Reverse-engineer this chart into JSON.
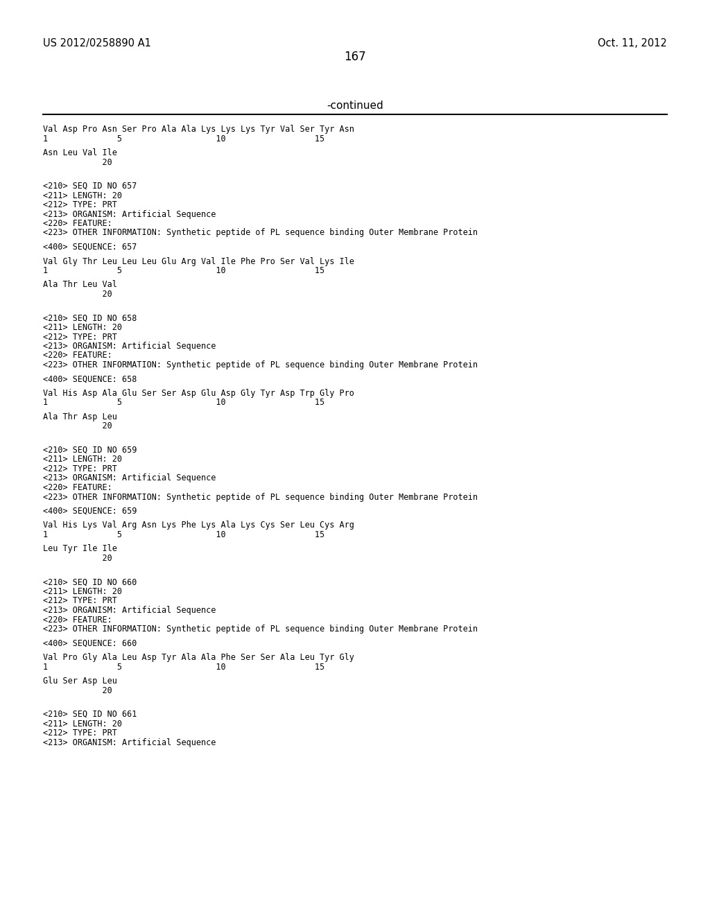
{
  "header_left": "US 2012/0258890 A1",
  "header_right": "Oct. 11, 2012",
  "page_number": "167",
  "continued_label": "-continued",
  "background_color": "#ffffff",
  "text_color": "#000000",
  "line_color": "#000000",
  "header_fontsize": 10.5,
  "page_num_fontsize": 12,
  "continued_fontsize": 11,
  "content_fontsize": 8.5,
  "content_lines": [
    {
      "text": "Val Asp Pro Asn Ser Pro Ala Ala Lys Lys Lys Tyr Val Ser Tyr Asn",
      "style": "seq"
    },
    {
      "text": "1              5                   10                  15",
      "style": "num"
    },
    {
      "text": "",
      "style": "blank"
    },
    {
      "text": "Asn Leu Val Ile",
      "style": "seq"
    },
    {
      "text": "            20",
      "style": "num"
    },
    {
      "text": "",
      "style": "blank"
    },
    {
      "text": "",
      "style": "blank"
    },
    {
      "text": "",
      "style": "blank"
    },
    {
      "text": "<210> SEQ ID NO 657",
      "style": "meta"
    },
    {
      "text": "<211> LENGTH: 20",
      "style": "meta"
    },
    {
      "text": "<212> TYPE: PRT",
      "style": "meta"
    },
    {
      "text": "<213> ORGANISM: Artificial Sequence",
      "style": "meta"
    },
    {
      "text": "<220> FEATURE:",
      "style": "meta"
    },
    {
      "text": "<223> OTHER INFORMATION: Synthetic peptide of PL sequence binding Outer Membrane Protein",
      "style": "meta"
    },
    {
      "text": "",
      "style": "blank"
    },
    {
      "text": "<400> SEQUENCE: 657",
      "style": "meta"
    },
    {
      "text": "",
      "style": "blank"
    },
    {
      "text": "Val Gly Thr Leu Leu Leu Glu Arg Val Ile Phe Pro Ser Val Lys Ile",
      "style": "seq"
    },
    {
      "text": "1              5                   10                  15",
      "style": "num"
    },
    {
      "text": "",
      "style": "blank"
    },
    {
      "text": "Ala Thr Leu Val",
      "style": "seq"
    },
    {
      "text": "            20",
      "style": "num"
    },
    {
      "text": "",
      "style": "blank"
    },
    {
      "text": "",
      "style": "blank"
    },
    {
      "text": "",
      "style": "blank"
    },
    {
      "text": "<210> SEQ ID NO 658",
      "style": "meta"
    },
    {
      "text": "<211> LENGTH: 20",
      "style": "meta"
    },
    {
      "text": "<212> TYPE: PRT",
      "style": "meta"
    },
    {
      "text": "<213> ORGANISM: Artificial Sequence",
      "style": "meta"
    },
    {
      "text": "<220> FEATURE:",
      "style": "meta"
    },
    {
      "text": "<223> OTHER INFORMATION: Synthetic peptide of PL sequence binding Outer Membrane Protein",
      "style": "meta"
    },
    {
      "text": "",
      "style": "blank"
    },
    {
      "text": "<400> SEQUENCE: 658",
      "style": "meta"
    },
    {
      "text": "",
      "style": "blank"
    },
    {
      "text": "Val His Asp Ala Glu Ser Ser Asp Glu Asp Gly Tyr Asp Trp Gly Pro",
      "style": "seq"
    },
    {
      "text": "1              5                   10                  15",
      "style": "num"
    },
    {
      "text": "",
      "style": "blank"
    },
    {
      "text": "Ala Thr Asp Leu",
      "style": "seq"
    },
    {
      "text": "            20",
      "style": "num"
    },
    {
      "text": "",
      "style": "blank"
    },
    {
      "text": "",
      "style": "blank"
    },
    {
      "text": "",
      "style": "blank"
    },
    {
      "text": "<210> SEQ ID NO 659",
      "style": "meta"
    },
    {
      "text": "<211> LENGTH: 20",
      "style": "meta"
    },
    {
      "text": "<212> TYPE: PRT",
      "style": "meta"
    },
    {
      "text": "<213> ORGANISM: Artificial Sequence",
      "style": "meta"
    },
    {
      "text": "<220> FEATURE:",
      "style": "meta"
    },
    {
      "text": "<223> OTHER INFORMATION: Synthetic peptide of PL sequence binding Outer Membrane Protein",
      "style": "meta"
    },
    {
      "text": "",
      "style": "blank"
    },
    {
      "text": "<400> SEQUENCE: 659",
      "style": "meta"
    },
    {
      "text": "",
      "style": "blank"
    },
    {
      "text": "Val His Lys Val Arg Asn Lys Phe Lys Ala Lys Cys Ser Leu Cys Arg",
      "style": "seq"
    },
    {
      "text": "1              5                   10                  15",
      "style": "num"
    },
    {
      "text": "",
      "style": "blank"
    },
    {
      "text": "Leu Tyr Ile Ile",
      "style": "seq"
    },
    {
      "text": "            20",
      "style": "num"
    },
    {
      "text": "",
      "style": "blank"
    },
    {
      "text": "",
      "style": "blank"
    },
    {
      "text": "",
      "style": "blank"
    },
    {
      "text": "<210> SEQ ID NO 660",
      "style": "meta"
    },
    {
      "text": "<211> LENGTH: 20",
      "style": "meta"
    },
    {
      "text": "<212> TYPE: PRT",
      "style": "meta"
    },
    {
      "text": "<213> ORGANISM: Artificial Sequence",
      "style": "meta"
    },
    {
      "text": "<220> FEATURE:",
      "style": "meta"
    },
    {
      "text": "<223> OTHER INFORMATION: Synthetic peptide of PL sequence binding Outer Membrane Protein",
      "style": "meta"
    },
    {
      "text": "",
      "style": "blank"
    },
    {
      "text": "<400> SEQUENCE: 660",
      "style": "meta"
    },
    {
      "text": "",
      "style": "blank"
    },
    {
      "text": "Val Pro Gly Ala Leu Asp Tyr Ala Ala Phe Ser Ser Ala Leu Tyr Gly",
      "style": "seq"
    },
    {
      "text": "1              5                   10                  15",
      "style": "num"
    },
    {
      "text": "",
      "style": "blank"
    },
    {
      "text": "Glu Ser Asp Leu",
      "style": "seq"
    },
    {
      "text": "            20",
      "style": "num"
    },
    {
      "text": "",
      "style": "blank"
    },
    {
      "text": "",
      "style": "blank"
    },
    {
      "text": "",
      "style": "blank"
    },
    {
      "text": "<210> SEQ ID NO 661",
      "style": "meta"
    },
    {
      "text": "<211> LENGTH: 20",
      "style": "meta"
    },
    {
      "text": "<212> TYPE: PRT",
      "style": "meta"
    },
    {
      "text": "<213> ORGANISM: Artificial Sequence",
      "style": "meta"
    }
  ]
}
